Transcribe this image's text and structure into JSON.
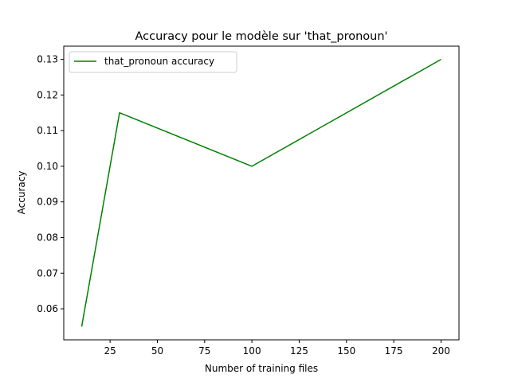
{
  "chart_data": {
    "type": "line",
    "title": "Accuracy pour le modèle sur 'that_pronoun'",
    "xlabel": "Number of training files",
    "ylabel": "Accuracy",
    "xlim": [
      0.5,
      209.5
    ],
    "ylim": [
      0.0513,
      0.1337
    ],
    "xticks": [
      25,
      50,
      75,
      100,
      125,
      150,
      175,
      200
    ],
    "yticks": [
      0.06,
      0.07,
      0.08,
      0.09,
      0.1,
      0.11,
      0.12,
      0.13
    ],
    "ytick_labels": [
      "0.06",
      "0.07",
      "0.08",
      "0.09",
      "0.10",
      "0.11",
      "0.12",
      "0.13"
    ],
    "grid": false,
    "legend_position": "upper-left",
    "series": [
      {
        "name": "that_pronoun accuracy",
        "color": "#008000",
        "x": [
          10,
          30,
          100,
          200
        ],
        "y": [
          0.055,
          0.115,
          0.1,
          0.13
        ]
      }
    ]
  }
}
